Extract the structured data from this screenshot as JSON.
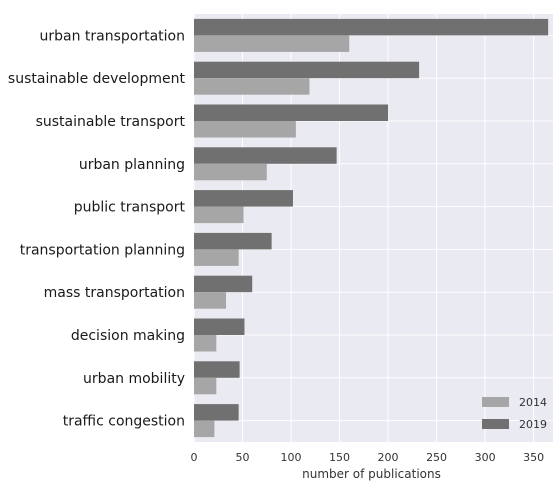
{
  "chart_data": {
    "type": "bar",
    "orientation": "horizontal",
    "categories": [
      "urban transportation",
      "sustainable development",
      "sustainable transport",
      "urban planning",
      "public transport",
      "transportation planning",
      "mass transportation",
      "decision making",
      "urban mobility",
      "traffic congestion"
    ],
    "series": [
      {
        "name": "2019",
        "color": "#707070",
        "values": [
          365,
          232,
          200,
          147,
          102,
          80,
          60,
          52,
          47,
          46
        ]
      },
      {
        "name": "2014",
        "color": "#a6a6a6",
        "values": [
          160,
          119,
          105,
          75,
          51,
          46,
          33,
          23,
          23,
          21
        ]
      }
    ],
    "xlabel": "number of publications",
    "ylabel": "",
    "title": "",
    "xlim": [
      0,
      370
    ],
    "xticks": [
      0,
      50,
      100,
      150,
      200,
      250,
      300,
      350
    ],
    "grid": true,
    "background": "#eaeaf2",
    "legend": {
      "placement": "bottom-right",
      "order": [
        "2014",
        "2019"
      ]
    }
  }
}
